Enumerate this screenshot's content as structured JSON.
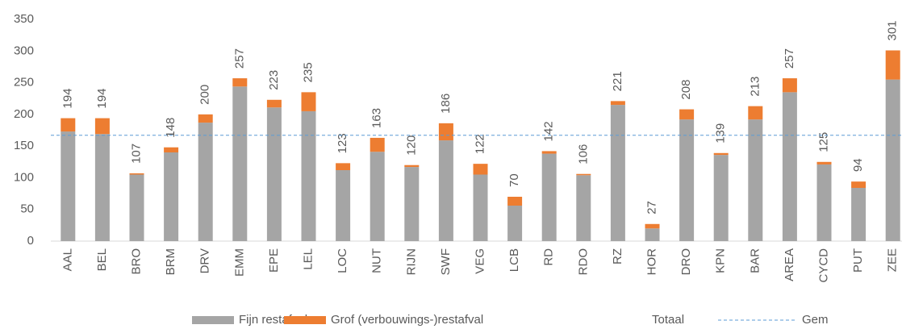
{
  "chart_data": {
    "type": "stacked_bar",
    "categories": [
      "AAL",
      "BEL",
      "BRO",
      "BRM",
      "DRV",
      "EMM",
      "EPE",
      "LEL",
      "LOC",
      "NUT",
      "RIJN",
      "SWF",
      "VEG",
      "LCB",
      "RD",
      "RDO",
      "RZ",
      "HOR",
      "DRO",
      "KPN",
      "BAR",
      "AREA",
      "CYCD",
      "PUT",
      "ZEE"
    ],
    "series": [
      {
        "name": "Fijn restafval",
        "color": "#a5a5a5",
        "values": [
          173,
          169,
          105,
          140,
          187,
          244,
          211,
          205,
          112,
          141,
          117,
          159,
          105,
          56,
          138,
          104,
          215,
          20,
          192,
          136,
          192,
          235,
          121,
          84,
          255
        ]
      },
      {
        "name": "Grof (verbouwings-)restafval",
        "color": "#ed7d31",
        "values": [
          21,
          25,
          2,
          8,
          13,
          13,
          12,
          30,
          11,
          22,
          3,
          27,
          17,
          14,
          4,
          2,
          6,
          7,
          16,
          3,
          21,
          22,
          4,
          10,
          46
        ]
      }
    ],
    "totals": {
      "name": "Totaal",
      "values": [
        194,
        194,
        107,
        148,
        200,
        257,
        223,
        235,
        123,
        163,
        120,
        186,
        122,
        70,
        142,
        106,
        221,
        27,
        208,
        139,
        213,
        257,
        125,
        94,
        301
      ]
    },
    "average": {
      "name": "Gem",
      "color": "#5b9bd5",
      "value": 167
    },
    "ylim": [
      0,
      350
    ],
    "yticks": [
      0,
      50,
      100,
      150,
      200,
      250,
      300,
      350
    ],
    "grid": false,
    "legend": "bottom"
  }
}
